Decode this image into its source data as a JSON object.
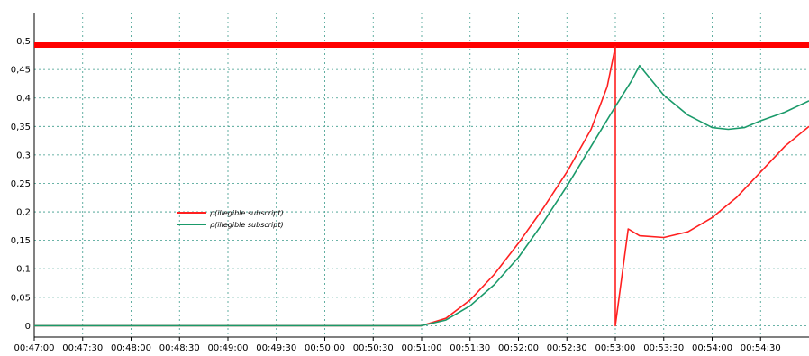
{
  "chart_data": {
    "type": "line",
    "title": "",
    "xlabel": "",
    "ylabel": "",
    "x_ticks": [
      "00:47:00",
      "00:47:30",
      "00:48:00",
      "00:48:30",
      "00:49:00",
      "00:49:30",
      "00:50:00",
      "00:50:30",
      "00:51:00",
      "00:51:30",
      "00:52:00",
      "00:52:30",
      "00:53:00",
      "00:53:30",
      "00:54:00",
      "00:54:30"
    ],
    "y_ticks": [
      "0",
      "0,05",
      "0,1",
      "0,15",
      "0,2",
      "0,25",
      "0,3",
      "0,35",
      "0,4",
      "0,45",
      "0,5"
    ],
    "xlim": [
      "00:47:00",
      "00:55:00"
    ],
    "ylim": [
      -0.02,
      0.55
    ],
    "grid": true,
    "legend_position": "left-center",
    "threshold": {
      "value": 0.493,
      "color": "#ff0000"
    },
    "series": [
      {
        "name": "ρ(illegible subscript)",
        "color": "#ff2020",
        "points": [
          [
            "00:47:00",
            0.0
          ],
          [
            "00:47:30",
            0.0
          ],
          [
            "00:48:00",
            0.0
          ],
          [
            "00:49:00",
            0.0
          ],
          [
            "00:50:00",
            0.0
          ],
          [
            "00:50:30",
            0.0
          ],
          [
            "00:51:00",
            0.0
          ],
          [
            "00:51:15",
            0.013
          ],
          [
            "00:51:30",
            0.045
          ],
          [
            "00:51:45",
            0.09
          ],
          [
            "00:52:00",
            0.145
          ],
          [
            "00:52:15",
            0.205
          ],
          [
            "00:52:30",
            0.27
          ],
          [
            "00:52:45",
            0.345
          ],
          [
            "00:52:55",
            0.42
          ],
          [
            "00:53:00",
            0.49
          ],
          [
            "00:53:00",
            0.0
          ],
          [
            "00:53:08",
            0.17
          ],
          [
            "00:53:15",
            0.158
          ],
          [
            "00:53:30",
            0.155
          ],
          [
            "00:53:45",
            0.165
          ],
          [
            "00:54:00",
            0.19
          ],
          [
            "00:54:15",
            0.225
          ],
          [
            "00:54:30",
            0.27
          ],
          [
            "00:54:45",
            0.315
          ],
          [
            "00:55:00",
            0.35
          ]
        ]
      },
      {
        "name": "ρ(illegible subscript)",
        "color": "#1a9a6a",
        "points": [
          [
            "00:47:00",
            0.0
          ],
          [
            "00:47:30",
            0.0
          ],
          [
            "00:48:00",
            0.0
          ],
          [
            "00:49:00",
            0.0
          ],
          [
            "00:50:00",
            0.0
          ],
          [
            "00:50:30",
            0.0
          ],
          [
            "00:51:00",
            0.0
          ],
          [
            "00:51:15",
            0.01
          ],
          [
            "00:51:30",
            0.035
          ],
          [
            "00:51:45",
            0.072
          ],
          [
            "00:52:00",
            0.12
          ],
          [
            "00:52:15",
            0.18
          ],
          [
            "00:52:30",
            0.245
          ],
          [
            "00:52:45",
            0.315
          ],
          [
            "00:53:00",
            0.385
          ],
          [
            "00:53:10",
            0.43
          ],
          [
            "00:53:15",
            0.457
          ],
          [
            "00:53:30",
            0.405
          ],
          [
            "00:53:45",
            0.37
          ],
          [
            "00:54:00",
            0.348
          ],
          [
            "00:54:10",
            0.345
          ],
          [
            "00:54:20",
            0.348
          ],
          [
            "00:54:30",
            0.36
          ],
          [
            "00:54:45",
            0.375
          ],
          [
            "00:55:00",
            0.395
          ]
        ]
      }
    ]
  }
}
